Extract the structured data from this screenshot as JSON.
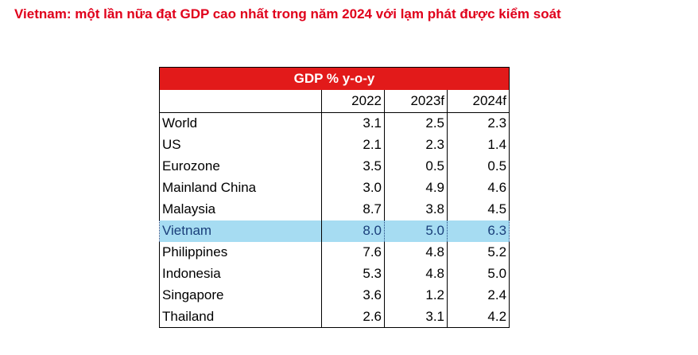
{
  "title": "Vietnam: một lần nữa đạt GDP cao nhất trong năm 2024 với lạm phát được kiểm soát",
  "accent_color": "#e0001b",
  "highlight_color": "#a6dcf2",
  "table": {
    "header": "GDP % y-o-y",
    "years": [
      "2022",
      "2023f",
      "2024f"
    ],
    "rows": [
      {
        "name": "World",
        "values": [
          "3.1",
          "2.5",
          "2.3"
        ]
      },
      {
        "name": "US",
        "values": [
          "2.1",
          "2.3",
          "1.4"
        ]
      },
      {
        "name": "Eurozone",
        "values": [
          "3.5",
          "0.5",
          "0.5"
        ]
      },
      {
        "name": "Mainland China",
        "values": [
          "3.0",
          "4.9",
          "4.6"
        ]
      },
      {
        "name": "Malaysia",
        "values": [
          "8.7",
          "3.8",
          "4.5"
        ]
      },
      {
        "name": "Vietnam",
        "values": [
          "8.0",
          "5.0",
          "6.3"
        ]
      },
      {
        "name": "Philippines",
        "values": [
          "7.6",
          "4.8",
          "5.2"
        ]
      },
      {
        "name": "Indonesia",
        "values": [
          "5.3",
          "4.8",
          "5.0"
        ]
      },
      {
        "name": "Singapore",
        "values": [
          "3.6",
          "1.2",
          "2.4"
        ]
      },
      {
        "name": "Thailand",
        "values": [
          "2.6",
          "3.1",
          "4.2"
        ]
      }
    ],
    "highlighted_row": "Vietnam"
  },
  "chart_data": {
    "type": "table",
    "title": "GDP % y-o-y",
    "columns": [
      "2022",
      "2023f",
      "2024f"
    ],
    "rows": [
      {
        "name": "World",
        "values": [
          3.1,
          2.5,
          2.3
        ]
      },
      {
        "name": "US",
        "values": [
          2.1,
          2.3,
          1.4
        ]
      },
      {
        "name": "Eurozone",
        "values": [
          3.5,
          0.5,
          0.5
        ]
      },
      {
        "name": "Mainland China",
        "values": [
          3.0,
          4.9,
          4.6
        ]
      },
      {
        "name": "Malaysia",
        "values": [
          8.7,
          3.8,
          4.5
        ]
      },
      {
        "name": "Vietnam",
        "values": [
          8.0,
          5.0,
          6.3
        ]
      },
      {
        "name": "Philippines",
        "values": [
          7.6,
          4.8,
          5.2
        ]
      },
      {
        "name": "Indonesia",
        "values": [
          5.3,
          4.8,
          5.0
        ]
      },
      {
        "name": "Singapore",
        "values": [
          3.6,
          1.2,
          2.4
        ]
      },
      {
        "name": "Thailand",
        "values": [
          2.6,
          3.1,
          4.2
        ]
      }
    ]
  }
}
